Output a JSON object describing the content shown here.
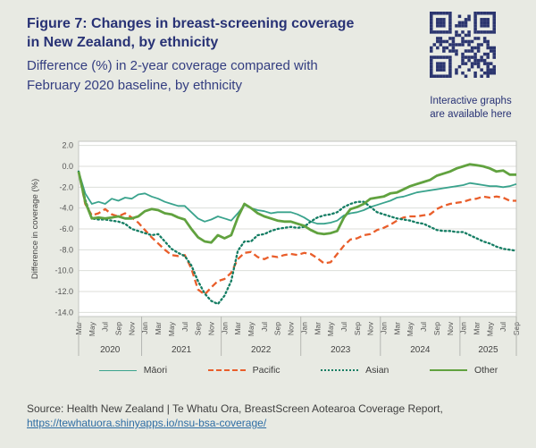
{
  "header": {
    "title_line1": "Figure 7: Changes in breast-screening coverage",
    "title_line2": "in New Zealand, by ethnicity",
    "subtitle_line1": "Difference (%) in 2-year coverage compared with",
    "subtitle_line2": "February 2020 baseline, by ethnicity"
  },
  "qr": {
    "caption_line1": "Interactive graphs",
    "caption_line2": "are available here"
  },
  "chart_data": {
    "type": "line",
    "ylabel": "Difference in coverage (%)",
    "ylim": [
      -14,
      2
    ],
    "ytick_step": 2,
    "ytick_labels": [
      "2.0",
      "0.0",
      "-2.0",
      "-4.0",
      "-6.0",
      "-8.0",
      "-10.0",
      "-12.0",
      "-14.0"
    ],
    "grid": "horizontal-only",
    "legend_position": "bottom",
    "x_start": "Mar 2020",
    "x_end": "Sep 2025",
    "x_tick_every_months": 2,
    "x_tick_labels": [
      "Mar",
      "May",
      "Jul",
      "Sep",
      "Nov",
      "Jan",
      "Mar",
      "May",
      "Jul",
      "Sep",
      "Nov",
      "Jan",
      "Mar",
      "May",
      "Jul",
      "Sep",
      "Nov",
      "Jan",
      "Mar",
      "May",
      "Jul",
      "Sep",
      "Nov",
      "Jan",
      "Mar",
      "May",
      "Jul",
      "Sep",
      "Nov",
      "Jan",
      "Mar",
      "May",
      "Jul",
      "Sep"
    ],
    "years": [
      {
        "label": "2020",
        "from": 0,
        "to": 9
      },
      {
        "label": "2021",
        "from": 10,
        "to": 21
      },
      {
        "label": "2022",
        "from": 22,
        "to": 33
      },
      {
        "label": "2023",
        "from": 34,
        "to": 45
      },
      {
        "label": "2024",
        "from": 46,
        "to": 57
      },
      {
        "label": "2025",
        "from": 58,
        "to": 66
      }
    ],
    "series": [
      {
        "name": "Māori",
        "color": "#3aa38d",
        "style": "solid",
        "width": 1.8,
        "values": [
          -0.5,
          -2.6,
          -3.6,
          -3.4,
          -3.6,
          -3.1,
          -3.3,
          -3.0,
          -3.1,
          -2.7,
          -2.6,
          -2.9,
          -3.1,
          -3.4,
          -3.6,
          -3.8,
          -3.8,
          -4.4,
          -5.0,
          -5.3,
          -5.1,
          -4.8,
          -5.0,
          -5.2,
          -4.5,
          -3.7,
          -4.0,
          -4.2,
          -4.3,
          -4.5,
          -4.4,
          -4.4,
          -4.4,
          -4.6,
          -4.9,
          -5.3,
          -5.5,
          -5.5,
          -5.4,
          -5.2,
          -4.7,
          -4.5,
          -4.4,
          -4.2,
          -3.9,
          -3.7,
          -3.5,
          -3.3,
          -3.0,
          -2.9,
          -2.7,
          -2.5,
          -2.4,
          -2.3,
          -2.2,
          -2.1,
          -2.0,
          -1.9,
          -1.8,
          -1.6,
          -1.7,
          -1.8,
          -1.9,
          -1.9,
          -2.0,
          -1.9,
          -1.7
        ]
      },
      {
        "name": "Pacific",
        "color": "#e95e2b",
        "style": "dashed",
        "width": 2.3,
        "values": [
          -0.5,
          -3.6,
          -4.7,
          -4.5,
          -4.1,
          -4.6,
          -4.8,
          -4.5,
          -4.9,
          -5.4,
          -6.1,
          -6.8,
          -7.4,
          -8.0,
          -8.5,
          -8.6,
          -8.5,
          -9.8,
          -11.8,
          -12.3,
          -11.6,
          -11.0,
          -10.8,
          -10.2,
          -8.9,
          -8.3,
          -8.2,
          -8.7,
          -8.9,
          -8.6,
          -8.7,
          -8.5,
          -8.4,
          -8.5,
          -8.3,
          -8.4,
          -8.8,
          -9.3,
          -9.2,
          -8.4,
          -7.6,
          -7.0,
          -6.9,
          -6.6,
          -6.5,
          -6.1,
          -5.9,
          -5.6,
          -5.2,
          -4.9,
          -4.8,
          -4.8,
          -4.7,
          -4.6,
          -4.1,
          -3.8,
          -3.6,
          -3.5,
          -3.4,
          -3.2,
          -3.1,
          -2.9,
          -3.0,
          -2.9,
          -3.0,
          -3.3,
          -3.3
        ]
      },
      {
        "name": "Asian",
        "color": "#147d63",
        "style": "dotted",
        "width": 2.3,
        "values": [
          -0.5,
          -3.2,
          -5.0,
          -5.1,
          -5.1,
          -5.2,
          -5.3,
          -5.5,
          -6.0,
          -6.2,
          -6.4,
          -6.6,
          -6.5,
          -7.2,
          -7.9,
          -8.3,
          -8.6,
          -9.5,
          -11.0,
          -12.2,
          -12.9,
          -13.2,
          -12.4,
          -11.0,
          -8.1,
          -7.2,
          -7.2,
          -6.6,
          -6.5,
          -6.2,
          -6.0,
          -5.9,
          -5.8,
          -5.9,
          -5.8,
          -5.3,
          -4.9,
          -4.7,
          -4.6,
          -4.4,
          -3.9,
          -3.6,
          -3.4,
          -3.4,
          -3.9,
          -4.4,
          -4.6,
          -4.8,
          -5.0,
          -5.1,
          -5.2,
          -5.4,
          -5.5,
          -5.8,
          -6.1,
          -6.2,
          -6.2,
          -6.3,
          -6.3,
          -6.6,
          -6.9,
          -7.2,
          -7.4,
          -7.7,
          -7.9,
          -8.0,
          -8.1
        ]
      },
      {
        "name": "Other",
        "color": "#61a23f",
        "style": "solid",
        "width": 2.8,
        "values": [
          -0.5,
          -3.4,
          -5.0,
          -4.9,
          -5.0,
          -4.9,
          -4.8,
          -5.0,
          -5.0,
          -4.8,
          -4.3,
          -4.1,
          -4.2,
          -4.5,
          -4.6,
          -4.9,
          -5.1,
          -6.0,
          -6.8,
          -7.2,
          -7.3,
          -6.6,
          -6.9,
          -6.6,
          -4.9,
          -3.6,
          -4.0,
          -4.5,
          -4.8,
          -5.0,
          -5.2,
          -5.3,
          -5.3,
          -5.5,
          -5.7,
          -6.1,
          -6.4,
          -6.5,
          -6.4,
          -6.2,
          -4.9,
          -4.1,
          -3.9,
          -3.6,
          -3.1,
          -3.0,
          -2.9,
          -2.6,
          -2.5,
          -2.2,
          -1.9,
          -1.7,
          -1.5,
          -1.3,
          -0.9,
          -0.7,
          -0.5,
          -0.2,
          0.0,
          0.2,
          0.1,
          0.0,
          -0.2,
          -0.5,
          -0.4,
          -0.8,
          -0.8
        ]
      }
    ]
  },
  "source": {
    "text": "Source: Health New Zealand | Te Whatu Ora, BreastScreen Aotearoa Coverage Report,",
    "link": "https://tewhatuora.shinyapps.io/nsu-bsa-coverage/"
  },
  "colors": {
    "background": "#e8eae3",
    "title": "#283275",
    "subtitle": "#333d80",
    "qr": "#2b356f",
    "link": "#2e6da4",
    "source_text": "#3f3f3f",
    "plot_background": "#ffffff",
    "gridline": "#dcded9",
    "plot_border": "#c3c5c0",
    "axis_text": "#555555"
  }
}
